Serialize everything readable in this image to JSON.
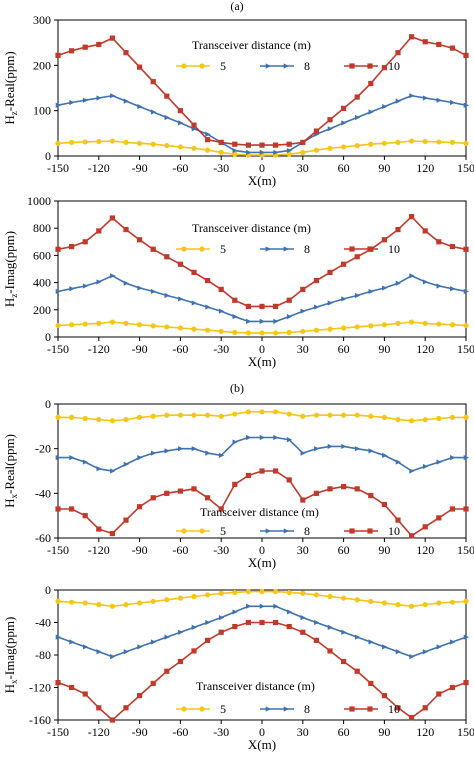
{
  "figure": {
    "label_a": "(a)",
    "label_b": "(b)"
  },
  "colors": {
    "s5": "#F5C518",
    "s8": "#3F72AF",
    "s10": "#C0392B"
  },
  "chart_data": [
    {
      "type": "line",
      "xlabel": "X(m)",
      "ylabel": "Hz-Real(ppm)",
      "ylabel_main": "H",
      "ylabel_sub": "z",
      "ylabel_rest": "-Real(ppm)",
      "xlim": [
        -150,
        150
      ],
      "ylim": [
        0,
        300
      ],
      "xticks": [
        -150,
        -120,
        -90,
        -60,
        -30,
        0,
        30,
        60,
        90,
        120,
        150
      ],
      "yticks": [
        0,
        100,
        200,
        300
      ],
      "legend_title": "Transceiver distance (m)",
      "series": [
        {
          "name": "5",
          "marker": "circle",
          "x": [
            -150,
            -140,
            -130,
            -120,
            -110,
            -100,
            -90,
            -80,
            -70,
            -60,
            -50,
            -40,
            -30,
            -20,
            -10,
            0,
            10,
            20,
            30,
            40,
            50,
            60,
            70,
            80,
            90,
            100,
            110,
            120,
            130,
            140,
            150
          ],
          "y": [
            28,
            30,
            31,
            32,
            33,
            30,
            28,
            26,
            23,
            20,
            17,
            13,
            8,
            4,
            2,
            2,
            2,
            4,
            8,
            13,
            17,
            20,
            23,
            26,
            28,
            30,
            33,
            32,
            31,
            30,
            28
          ]
        },
        {
          "name": "8",
          "marker": "triangle-right",
          "x": [
            -150,
            -140,
            -130,
            -120,
            -110,
            -100,
            -90,
            -80,
            -70,
            -60,
            -50,
            -40,
            -30,
            -20,
            -10,
            0,
            10,
            20,
            30,
            40,
            50,
            60,
            70,
            80,
            90,
            100,
            110,
            120,
            130,
            140,
            150
          ],
          "y": [
            112,
            118,
            123,
            128,
            133,
            121,
            109,
            97,
            85,
            73,
            60,
            48,
            30,
            12,
            8,
            8,
            8,
            12,
            30,
            48,
            60,
            73,
            85,
            97,
            109,
            121,
            133,
            128,
            123,
            118,
            112
          ]
        },
        {
          "name": "10",
          "marker": "square",
          "x": [
            -150,
            -140,
            -130,
            -120,
            -110,
            -100,
            -90,
            -80,
            -70,
            -60,
            -50,
            -40,
            -30,
            -20,
            -10,
            0,
            10,
            20,
            30,
            40,
            50,
            60,
            70,
            80,
            90,
            100,
            110,
            120,
            130,
            140,
            150
          ],
          "y": [
            222,
            232,
            240,
            246,
            260,
            228,
            196,
            164,
            132,
            100,
            68,
            36,
            30,
            26,
            24,
            24,
            24,
            26,
            30,
            55,
            80,
            105,
            130,
            160,
            195,
            228,
            263,
            252,
            246,
            238,
            222
          ]
        }
      ]
    },
    {
      "type": "line",
      "xlabel": "X(m)",
      "ylabel": "Hz-Imag(ppm)",
      "ylabel_main": "H",
      "ylabel_sub": "z",
      "ylabel_rest": "-Imag(ppm)",
      "xlim": [
        -150,
        150
      ],
      "ylim": [
        0,
        1000
      ],
      "xticks": [
        -150,
        -120,
        -90,
        -60,
        -30,
        0,
        30,
        60,
        90,
        120,
        150
      ],
      "yticks": [
        0,
        200,
        400,
        600,
        800,
        1000
      ],
      "legend_title": "Transceiver distance (m)",
      "series": [
        {
          "name": "5",
          "marker": "circle",
          "x": [
            -150,
            -140,
            -130,
            -120,
            -110,
            -100,
            -90,
            -80,
            -70,
            -60,
            -50,
            -40,
            -30,
            -20,
            -10,
            0,
            10,
            20,
            30,
            40,
            50,
            60,
            70,
            80,
            90,
            100,
            110,
            120,
            130,
            140,
            150
          ],
          "y": [
            85,
            90,
            95,
            100,
            110,
            100,
            90,
            82,
            74,
            66,
            58,
            50,
            42,
            34,
            30,
            30,
            30,
            34,
            42,
            50,
            58,
            66,
            74,
            82,
            90,
            100,
            110,
            100,
            95,
            90,
            85
          ]
        },
        {
          "name": "8",
          "marker": "triangle-right",
          "x": [
            -150,
            -140,
            -130,
            -120,
            -110,
            -100,
            -90,
            -80,
            -70,
            -60,
            -50,
            -40,
            -30,
            -20,
            -10,
            0,
            10,
            20,
            30,
            40,
            50,
            60,
            70,
            80,
            90,
            100,
            110,
            120,
            130,
            140,
            150
          ],
          "y": [
            335,
            355,
            375,
            405,
            450,
            395,
            360,
            335,
            305,
            280,
            250,
            220,
            190,
            150,
            115,
            115,
            115,
            150,
            190,
            220,
            250,
            280,
            305,
            335,
            360,
            395,
            450,
            405,
            375,
            355,
            335
          ]
        },
        {
          "name": "10",
          "marker": "square",
          "x": [
            -150,
            -140,
            -130,
            -120,
            -110,
            -100,
            -90,
            -80,
            -70,
            -60,
            -50,
            -40,
            -30,
            -20,
            -10,
            0,
            10,
            20,
            30,
            40,
            50,
            60,
            70,
            80,
            90,
            100,
            110,
            120,
            130,
            140,
            150
          ],
          "y": [
            645,
            665,
            700,
            780,
            875,
            790,
            715,
            645,
            590,
            535,
            475,
            415,
            350,
            270,
            225,
            225,
            225,
            270,
            350,
            415,
            475,
            535,
            590,
            645,
            715,
            790,
            885,
            780,
            700,
            665,
            645
          ]
        }
      ]
    },
    {
      "type": "line",
      "xlabel": "X(m)",
      "ylabel": "Hx-Real(ppm)",
      "ylabel_main": "H",
      "ylabel_sub": "x",
      "ylabel_rest": "-Real(ppm)",
      "xlim": [
        -150,
        150
      ],
      "ylim": [
        -60,
        0
      ],
      "xticks": [
        -150,
        -120,
        -90,
        -60,
        -30,
        0,
        30,
        60,
        90,
        120,
        150
      ],
      "yticks": [
        -60,
        -40,
        -20,
        0
      ],
      "legend_title": "Transceiver distance (m)",
      "series": [
        {
          "name": "5",
          "marker": "circle",
          "x": [
            -150,
            -140,
            -130,
            -120,
            -110,
            -100,
            -90,
            -80,
            -70,
            -60,
            -50,
            -40,
            -30,
            -20,
            -10,
            0,
            10,
            20,
            30,
            40,
            50,
            60,
            70,
            80,
            90,
            100,
            110,
            120,
            130,
            140,
            150
          ],
          "y": [
            -6,
            -6,
            -6.5,
            -7,
            -7.5,
            -7,
            -6,
            -5.5,
            -5,
            -5,
            -5,
            -5,
            -5.5,
            -4.5,
            -3.5,
            -3.5,
            -3.5,
            -4.5,
            -5.5,
            -5,
            -5,
            -5,
            -5,
            -5.5,
            -6,
            -7,
            -7.5,
            -7,
            -6.5,
            -6,
            -6
          ]
        },
        {
          "name": "8",
          "marker": "triangle-right",
          "x": [
            -150,
            -140,
            -130,
            -120,
            -110,
            -100,
            -90,
            -80,
            -70,
            -60,
            -50,
            -40,
            -30,
            -20,
            -10,
            0,
            10,
            20,
            30,
            40,
            50,
            60,
            70,
            80,
            90,
            100,
            110,
            120,
            130,
            140,
            150
          ],
          "y": [
            -24,
            -24,
            -26,
            -29,
            -30,
            -27,
            -24,
            -22,
            -21,
            -20,
            -20,
            -22,
            -23,
            -17,
            -15,
            -15,
            -15,
            -16,
            -22,
            -20,
            -19,
            -19,
            -20,
            -21,
            -23,
            -26,
            -30,
            -28,
            -26,
            -24,
            -24
          ]
        },
        {
          "name": "10",
          "marker": "square",
          "x": [
            -150,
            -140,
            -130,
            -120,
            -110,
            -100,
            -90,
            -80,
            -70,
            -60,
            -50,
            -40,
            -30,
            -20,
            -10,
            0,
            10,
            20,
            30,
            40,
            50,
            60,
            70,
            80,
            90,
            100,
            110,
            120,
            130,
            140,
            150
          ],
          "y": [
            -47,
            -47,
            -50,
            -56,
            -58,
            -52,
            -46,
            -42,
            -40,
            -39,
            -38,
            -42,
            -47,
            -36,
            -32,
            -30,
            -30,
            -34,
            -43,
            -40,
            -38,
            -37,
            -38,
            -41,
            -45,
            -52,
            -59,
            -55,
            -51,
            -47,
            -47
          ]
        }
      ]
    },
    {
      "type": "line",
      "xlabel": "X(m)",
      "ylabel": "Hx-Imag(ppm)",
      "ylabel_main": "H",
      "ylabel_sub": "x",
      "ylabel_rest": "-Imag(ppm)",
      "xlim": [
        -150,
        150
      ],
      "ylim": [
        -160,
        0
      ],
      "xticks": [
        -150,
        -120,
        -90,
        -60,
        -30,
        0,
        30,
        60,
        90,
        120,
        150
      ],
      "yticks": [
        -160,
        -120,
        -80,
        -40,
        0
      ],
      "legend_title": "Transceiver distance (m)",
      "series": [
        {
          "name": "5",
          "marker": "circle",
          "x": [
            -150,
            -140,
            -130,
            -120,
            -110,
            -100,
            -90,
            -80,
            -70,
            -60,
            -50,
            -40,
            -30,
            -20,
            -10,
            0,
            10,
            20,
            30,
            40,
            50,
            60,
            70,
            80,
            90,
            100,
            110,
            120,
            130,
            140,
            150
          ],
          "y": [
            -14,
            -15,
            -16,
            -18,
            -20,
            -18,
            -16,
            -14,
            -12,
            -10,
            -8,
            -6,
            -4,
            -3,
            -2,
            -2,
            -2,
            -3,
            -4,
            -6,
            -8,
            -10,
            -12,
            -14,
            -16,
            -18,
            -20,
            -18,
            -16,
            -15,
            -14
          ]
        },
        {
          "name": "8",
          "marker": "triangle-right",
          "x": [
            -150,
            -140,
            -130,
            -120,
            -110,
            -100,
            -90,
            -80,
            -70,
            -60,
            -50,
            -40,
            -30,
            -20,
            -10,
            0,
            10,
            20,
            30,
            40,
            50,
            60,
            70,
            80,
            90,
            100,
            110,
            120,
            130,
            140,
            150
          ],
          "y": [
            -58,
            -64,
            -70,
            -76,
            -82,
            -76,
            -70,
            -64,
            -58,
            -52,
            -46,
            -40,
            -34,
            -27,
            -20,
            -20,
            -20,
            -27,
            -34,
            -40,
            -46,
            -52,
            -58,
            -64,
            -70,
            -76,
            -82,
            -76,
            -70,
            -64,
            -58
          ]
        },
        {
          "name": "10",
          "marker": "square",
          "x": [
            -150,
            -140,
            -130,
            -120,
            -110,
            -100,
            -90,
            -80,
            -70,
            -60,
            -50,
            -40,
            -30,
            -20,
            -10,
            0,
            10,
            20,
            30,
            40,
            50,
            60,
            70,
            80,
            90,
            100,
            110,
            120,
            130,
            140,
            150
          ],
          "y": [
            -114,
            -120,
            -128,
            -145,
            -160,
            -145,
            -130,
            -115,
            -100,
            -88,
            -75,
            -62,
            -52,
            -45,
            -40,
            -40,
            -40,
            -45,
            -52,
            -62,
            -75,
            -88,
            -100,
            -115,
            -130,
            -145,
            -157,
            -145,
            -128,
            -120,
            -114
          ]
        }
      ]
    }
  ]
}
